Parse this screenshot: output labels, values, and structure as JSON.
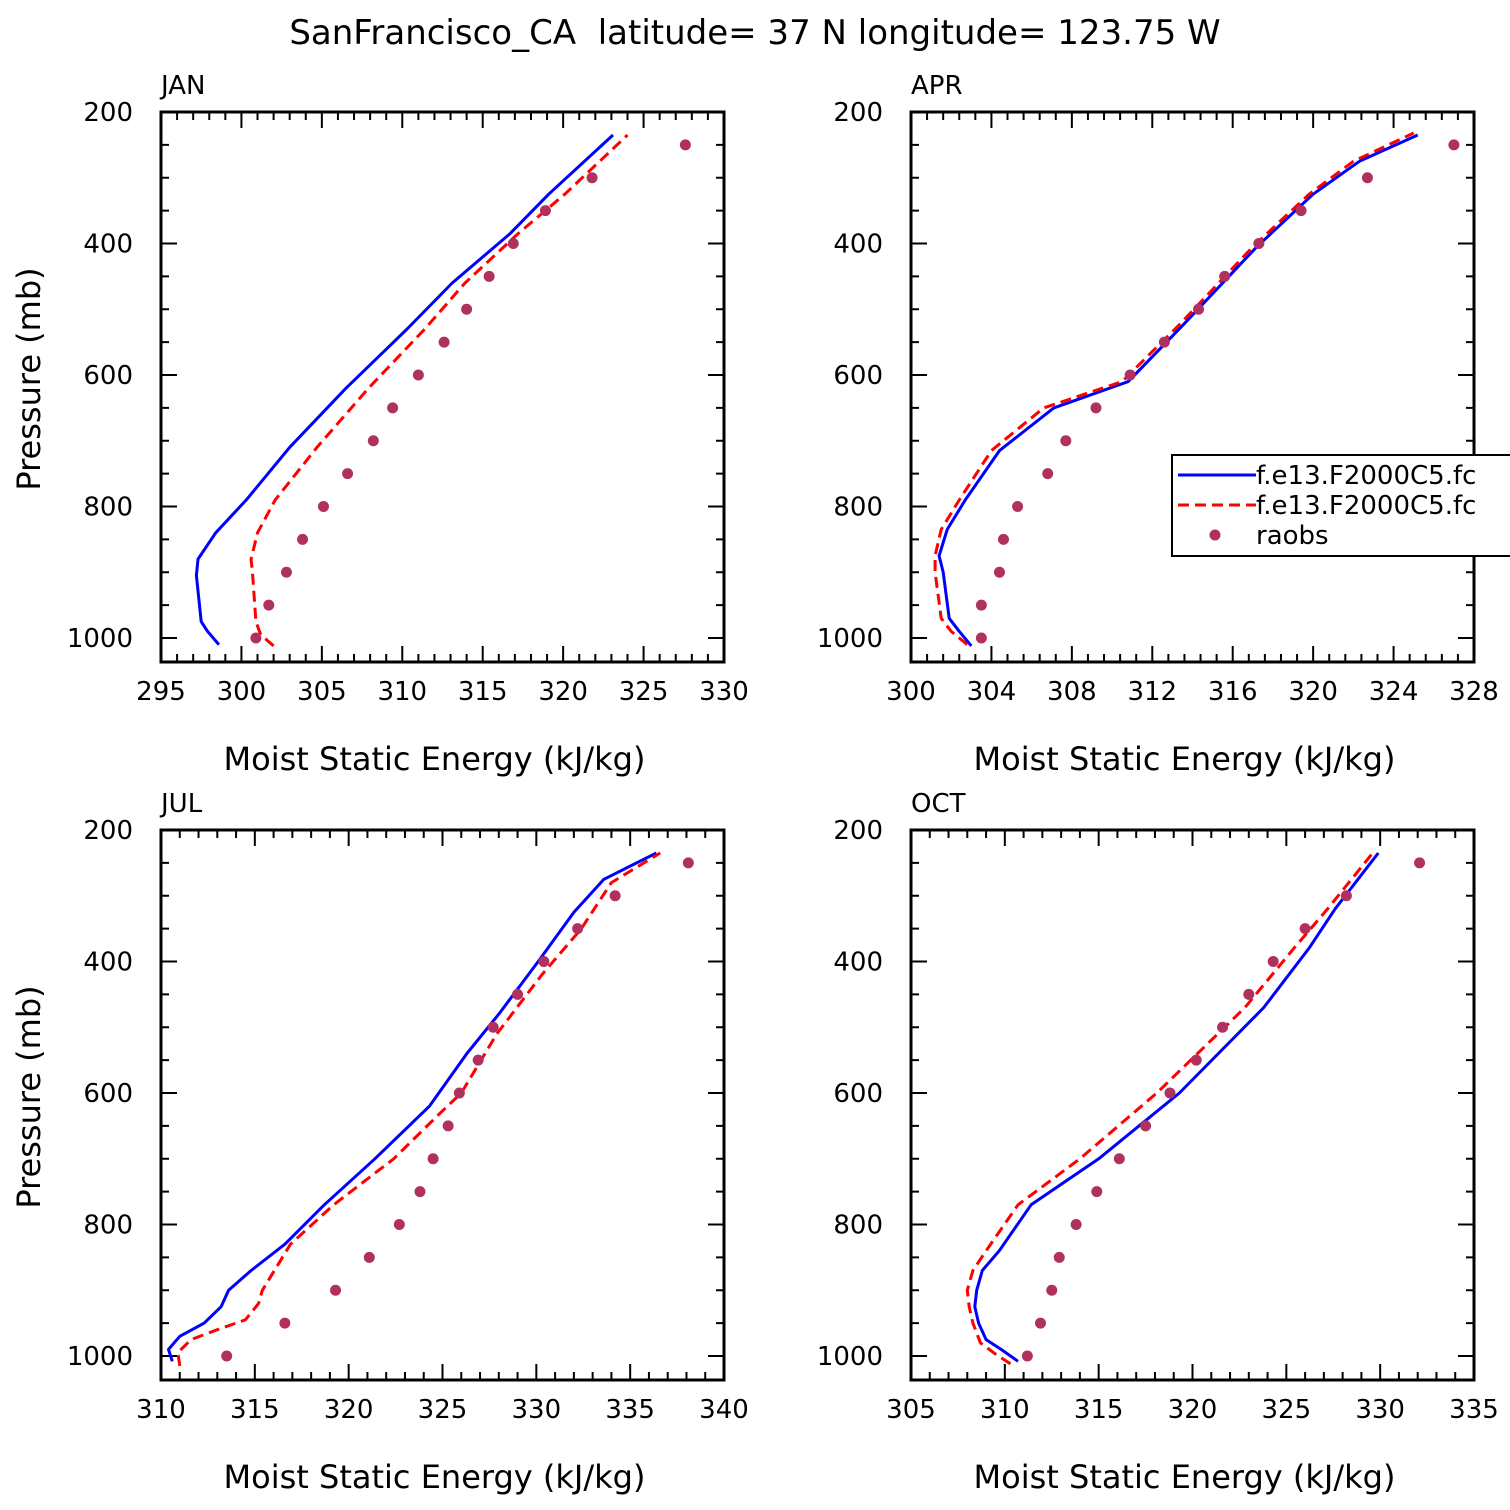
{
  "title": "SanFrancisco_CA  latitude= 37 N longitude= 123.75 W",
  "colors": {
    "model1": "#0000ff",
    "model2": "#ff0000",
    "raobs": "#b03060"
  },
  "legend": {
    "placement": "inside APR panel, right edge, overflowing",
    "entries": [
      {
        "label": "f.e13.F2000C5.fc",
        "style": "solid",
        "color": "#0000ff"
      },
      {
        "label": "f.e13.F2000C5.fc",
        "style": "dashed",
        "color": "#ff0000"
      },
      {
        "label": "raobs",
        "style": "marker",
        "color": "#b03060"
      }
    ]
  },
  "chart_data": [
    {
      "type": "line",
      "panel": "JAN",
      "xlabel": "Moist Static Energy (kJ/kg)",
      "ylabel": "Pressure (mb)",
      "xlim": [
        295,
        330
      ],
      "ylim": [
        1000,
        200
      ],
      "y_reversed": true,
      "xticks": [
        295,
        300,
        305,
        310,
        315,
        320,
        325,
        330
      ],
      "yticks": [
        200,
        400,
        600,
        800,
        1000
      ],
      "series": [
        {
          "name": "f.e13.F2000C5.fc",
          "style": "solid",
          "color": "#0000ff",
          "x": [
            298.6,
            297.9,
            297.5,
            297.2,
            297.3,
            298.4,
            300.3,
            303.0,
            306.5,
            310.3,
            313.1,
            316.7,
            319.1,
            323.1
          ],
          "y": [
            1010,
            990,
            975,
            905,
            880,
            840,
            790,
            710,
            620,
            530,
            460,
            385,
            325,
            235
          ]
        },
        {
          "name": "f.e13.F2000C5.fc",
          "style": "dashed",
          "color": "#ff0000",
          "x": [
            302.0,
            301.2,
            300.9,
            300.7,
            300.6,
            301.0,
            302.1,
            304.7,
            307.9,
            311.4,
            313.9,
            317.2,
            320.1,
            324.0
          ],
          "y": [
            1012,
            995,
            975,
            905,
            880,
            840,
            790,
            710,
            620,
            530,
            460,
            385,
            325,
            235
          ]
        },
        {
          "name": "raobs",
          "style": "marker",
          "color": "#b03060",
          "x": [
            300.9,
            301.7,
            302.8,
            303.8,
            305.1,
            306.6,
            308.2,
            309.4,
            311.0,
            312.6,
            314.0,
            315.4,
            316.9,
            318.9,
            321.8,
            327.6
          ],
          "y": [
            1000,
            950,
            900,
            850,
            800,
            750,
            700,
            650,
            600,
            550,
            500,
            450,
            400,
            350,
            300,
            250
          ]
        }
      ]
    },
    {
      "type": "line",
      "panel": "APR",
      "xlabel": "Moist Static Energy (kJ/kg)",
      "ylabel": "",
      "xlim": [
        300,
        328
      ],
      "ylim": [
        1000,
        200
      ],
      "y_reversed": true,
      "xticks": [
        300,
        304,
        308,
        312,
        316,
        320,
        324,
        328
      ],
      "yticks": [
        200,
        400,
        600,
        800,
        1000
      ],
      "series": [
        {
          "name": "f.e13.F2000C5.fc",
          "style": "solid",
          "color": "#0000ff",
          "x": [
            303.0,
            302.4,
            301.9,
            301.6,
            301.4,
            301.8,
            302.7,
            304.4,
            307.1,
            310.8,
            313.5,
            317.2,
            320.0,
            322.3,
            325.2
          ],
          "y": [
            1012,
            990,
            970,
            900,
            875,
            835,
            790,
            715,
            650,
            610,
            525,
            405,
            325,
            275,
            235
          ]
        },
        {
          "name": "f.e13.F2000C5.fc",
          "style": "dashed",
          "color": "#ff0000",
          "x": [
            302.8,
            302.0,
            301.5,
            301.2,
            301.2,
            301.5,
            302.4,
            304.0,
            306.6,
            310.5,
            313.3,
            317.0,
            319.8,
            322.0,
            325.0
          ],
          "y": [
            1010,
            990,
            970,
            900,
            875,
            835,
            790,
            715,
            650,
            610,
            525,
            405,
            325,
            275,
            232
          ]
        },
        {
          "name": "raobs",
          "style": "marker",
          "color": "#b03060",
          "x": [
            303.5,
            303.5,
            304.4,
            304.6,
            305.3,
            306.8,
            307.7,
            309.2,
            310.9,
            312.6,
            314.3,
            315.6,
            317.3,
            319.4,
            322.7,
            327.0
          ],
          "y": [
            1000,
            950,
            900,
            850,
            800,
            750,
            700,
            650,
            600,
            550,
            500,
            450,
            400,
            350,
            300,
            250
          ]
        }
      ]
    },
    {
      "type": "line",
      "panel": "JUL",
      "xlabel": "Moist Static Energy (kJ/kg)",
      "ylabel": "Pressure (mb)",
      "xlim": [
        310,
        340
      ],
      "ylim": [
        1000,
        200
      ],
      "y_reversed": true,
      "xticks": [
        310,
        315,
        320,
        325,
        330,
        335,
        340
      ],
      "yticks": [
        200,
        400,
        600,
        800,
        1000
      ],
      "series": [
        {
          "name": "f.e13.F2000C5.fc",
          "style": "solid",
          "color": "#0000ff",
          "x": [
            310.6,
            310.4,
            311.0,
            312.3,
            313.2,
            313.6,
            314.8,
            316.6,
            318.7,
            321.4,
            324.3,
            326.3,
            328.0,
            330.1,
            332.0,
            333.6,
            336.4
          ],
          "y": [
            1008,
            990,
            970,
            950,
            925,
            900,
            870,
            830,
            770,
            700,
            620,
            540,
            480,
            400,
            325,
            275,
            235
          ]
        },
        {
          "name": "f.e13.F2000C5.fc",
          "style": "dashed",
          "color": "#ff0000",
          "x": [
            311.0,
            310.9,
            311.6,
            313.0,
            314.5,
            315.2,
            315.4,
            316.9,
            319.2,
            322.4,
            324.9,
            326.0,
            327.9,
            330.3,
            332.4,
            334.0,
            336.6
          ],
          "y": [
            1015,
            995,
            975,
            960,
            945,
            920,
            900,
            830,
            770,
            700,
            630,
            600,
            510,
            420,
            350,
            280,
            235
          ]
        },
        {
          "name": "raobs",
          "style": "marker",
          "color": "#b03060",
          "x": [
            313.5,
            316.6,
            319.3,
            321.1,
            322.7,
            323.8,
            324.5,
            325.3,
            325.9,
            326.9,
            327.7,
            329.0,
            330.4,
            332.2,
            334.2,
            338.1
          ],
          "y": [
            1000,
            950,
            900,
            850,
            800,
            750,
            700,
            650,
            600,
            550,
            500,
            450,
            400,
            350,
            300,
            250
          ]
        }
      ]
    },
    {
      "type": "line",
      "panel": "OCT",
      "xlabel": "Moist Static Energy (kJ/kg)",
      "ylabel": "",
      "xlim": [
        305,
        335
      ],
      "ylim": [
        1000,
        200
      ],
      "y_reversed": true,
      "xticks": [
        305,
        310,
        315,
        320,
        325,
        330,
        335
      ],
      "yticks": [
        200,
        400,
        600,
        800,
        1000
      ],
      "series": [
        {
          "name": "f.e13.F2000C5.fc",
          "style": "solid",
          "color": "#0000ff",
          "x": [
            310.7,
            309.8,
            309.0,
            308.6,
            308.4,
            308.5,
            308.8,
            309.7,
            311.4,
            315.0,
            319.3,
            323.8,
            326.2,
            327.6,
            329.9
          ],
          "y": [
            1008,
            990,
            975,
            950,
            925,
            900,
            870,
            840,
            770,
            700,
            600,
            470,
            380,
            320,
            235
          ]
        },
        {
          "name": "f.e13.F2000C5.fc",
          "style": "dashed",
          "color": "#ff0000",
          "x": [
            310.3,
            309.4,
            308.7,
            308.3,
            308.1,
            308.0,
            308.3,
            309.0,
            310.7,
            314.0,
            318.1,
            322.8,
            325.4,
            327.2,
            329.6
          ],
          "y": [
            1012,
            995,
            980,
            950,
            925,
            900,
            870,
            840,
            770,
            700,
            600,
            470,
            380,
            320,
            235
          ]
        },
        {
          "name": "raobs",
          "style": "marker",
          "color": "#b03060",
          "x": [
            311.2,
            311.9,
            312.5,
            312.9,
            313.8,
            314.9,
            316.1,
            317.5,
            318.8,
            320.2,
            321.6,
            323.0,
            324.3,
            326.0,
            328.2,
            332.1
          ],
          "y": [
            1000,
            950,
            900,
            850,
            800,
            750,
            700,
            650,
            600,
            550,
            500,
            450,
            400,
            350,
            300,
            250
          ]
        }
      ]
    }
  ]
}
